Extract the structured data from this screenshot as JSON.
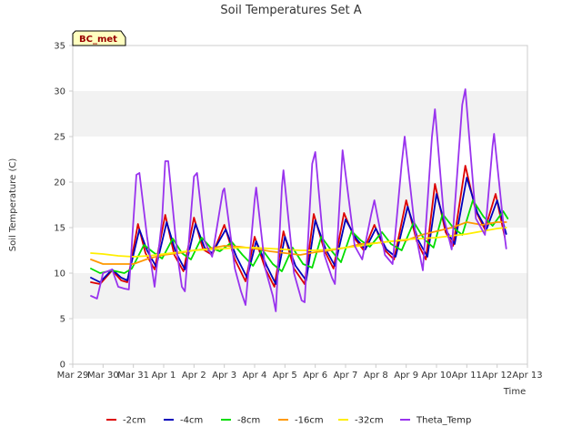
{
  "chart_data": {
    "type": "line",
    "title": "Soil Temperatures Set A",
    "xlabel": "Time",
    "ylabel": "Soil Temperature (C)",
    "station_label": "BC_met",
    "x_ticks": [
      "Mar 29",
      "Mar 30",
      "Mar 31",
      "Apr 1",
      "Apr 2",
      "Apr 3",
      "Apr 4",
      "Apr 5",
      "Apr 6",
      "Apr 7",
      "Apr 8",
      "Apr 9",
      "Apr 10",
      "Apr 11",
      "Apr 12",
      "Apr 13"
    ],
    "xlim": [
      0,
      15
    ],
    "y_ticks": [
      0,
      5,
      10,
      15,
      20,
      25,
      30,
      35
    ],
    "ylim": [
      0,
      35
    ],
    "grid": "horizontal bands",
    "legend_position": "bottom",
    "x_unit": "days since Mar 29",
    "series": [
      {
        "name": "-2cm",
        "color": "#dd0000",
        "points": [
          [
            0.6,
            9.0
          ],
          [
            0.9,
            8.8
          ],
          [
            1.3,
            10.3
          ],
          [
            1.6,
            9.2
          ],
          [
            1.8,
            9.0
          ],
          [
            2.15,
            15.4
          ],
          [
            2.4,
            12.2
          ],
          [
            2.7,
            10.4
          ],
          [
            3.05,
            16.4
          ],
          [
            3.35,
            12.0
          ],
          [
            3.65,
            10.2
          ],
          [
            4.0,
            16.1
          ],
          [
            4.3,
            12.6
          ],
          [
            4.6,
            12.0
          ],
          [
            5.0,
            15.3
          ],
          [
            5.35,
            11.5
          ],
          [
            5.7,
            9.1
          ],
          [
            6.0,
            14.0
          ],
          [
            6.35,
            10.5
          ],
          [
            6.65,
            8.5
          ],
          [
            6.95,
            14.6
          ],
          [
            7.3,
            10.5
          ],
          [
            7.65,
            8.8
          ],
          [
            7.95,
            16.5
          ],
          [
            8.3,
            12.5
          ],
          [
            8.6,
            10.5
          ],
          [
            8.95,
            16.6
          ],
          [
            9.3,
            13.8
          ],
          [
            9.6,
            12.5
          ],
          [
            9.95,
            15.3
          ],
          [
            10.3,
            12.5
          ],
          [
            10.6,
            11.5
          ],
          [
            11.0,
            18.0
          ],
          [
            11.35,
            13.5
          ],
          [
            11.65,
            11.5
          ],
          [
            11.95,
            19.8
          ],
          [
            12.3,
            14.5
          ],
          [
            12.55,
            13.0
          ],
          [
            12.95,
            21.8
          ],
          [
            13.3,
            16.8
          ],
          [
            13.6,
            14.8
          ],
          [
            13.95,
            18.7
          ],
          [
            14.25,
            14.0
          ]
        ]
      },
      {
        "name": "-4cm",
        "color": "#0000bb",
        "points": [
          [
            0.6,
            9.5
          ],
          [
            0.9,
            9.0
          ],
          [
            1.3,
            10.4
          ],
          [
            1.6,
            9.5
          ],
          [
            1.8,
            9.2
          ],
          [
            2.2,
            14.8
          ],
          [
            2.45,
            12.5
          ],
          [
            2.75,
            10.7
          ],
          [
            3.1,
            15.6
          ],
          [
            3.4,
            12.3
          ],
          [
            3.7,
            10.4
          ],
          [
            4.05,
            15.4
          ],
          [
            4.35,
            12.8
          ],
          [
            4.6,
            12.2
          ],
          [
            5.05,
            14.8
          ],
          [
            5.4,
            11.8
          ],
          [
            5.75,
            9.5
          ],
          [
            6.05,
            13.5
          ],
          [
            6.4,
            10.8
          ],
          [
            6.7,
            8.8
          ],
          [
            7.0,
            14.0
          ],
          [
            7.35,
            10.8
          ],
          [
            7.7,
            9.2
          ],
          [
            8.0,
            15.8
          ],
          [
            8.35,
            12.6
          ],
          [
            8.65,
            10.8
          ],
          [
            9.0,
            15.9
          ],
          [
            9.35,
            13.8
          ],
          [
            9.65,
            12.6
          ],
          [
            10.0,
            14.9
          ],
          [
            10.35,
            12.6
          ],
          [
            10.65,
            11.8
          ],
          [
            11.05,
            17.3
          ],
          [
            11.4,
            13.6
          ],
          [
            11.7,
            11.8
          ],
          [
            12.0,
            18.7
          ],
          [
            12.35,
            14.5
          ],
          [
            12.6,
            13.2
          ],
          [
            13.0,
            20.5
          ],
          [
            13.35,
            16.6
          ],
          [
            13.65,
            14.8
          ],
          [
            14.0,
            18.0
          ],
          [
            14.3,
            14.3
          ]
        ]
      },
      {
        "name": "-8cm",
        "color": "#00dd00",
        "points": [
          [
            0.6,
            10.5
          ],
          [
            0.9,
            10.0
          ],
          [
            1.3,
            10.3
          ],
          [
            1.7,
            10.0
          ],
          [
            1.95,
            10.5
          ],
          [
            2.35,
            13.1
          ],
          [
            2.65,
            12.3
          ],
          [
            2.95,
            11.6
          ],
          [
            3.3,
            13.8
          ],
          [
            3.6,
            12.2
          ],
          [
            3.9,
            11.5
          ],
          [
            4.25,
            13.9
          ],
          [
            4.55,
            12.8
          ],
          [
            4.85,
            12.4
          ],
          [
            5.25,
            13.4
          ],
          [
            5.6,
            12.0
          ],
          [
            5.95,
            10.8
          ],
          [
            6.25,
            12.6
          ],
          [
            6.6,
            11.0
          ],
          [
            6.9,
            10.2
          ],
          [
            7.25,
            12.8
          ],
          [
            7.6,
            11.0
          ],
          [
            7.9,
            10.6
          ],
          [
            8.2,
            14.0
          ],
          [
            8.55,
            12.4
          ],
          [
            8.85,
            11.2
          ],
          [
            9.2,
            14.6
          ],
          [
            9.5,
            13.6
          ],
          [
            9.8,
            12.9
          ],
          [
            10.2,
            14.5
          ],
          [
            10.5,
            13.2
          ],
          [
            10.85,
            12.5
          ],
          [
            11.25,
            15.6
          ],
          [
            11.6,
            13.7
          ],
          [
            11.9,
            12.8
          ],
          [
            12.2,
            16.5
          ],
          [
            12.55,
            15.0
          ],
          [
            12.85,
            14.2
          ],
          [
            13.2,
            18.0
          ],
          [
            13.55,
            16.2
          ],
          [
            13.85,
            15.2
          ],
          [
            14.2,
            16.8
          ],
          [
            14.35,
            16.0
          ]
        ]
      },
      {
        "name": "-16cm",
        "color": "#ff9900",
        "points": [
          [
            0.6,
            11.5
          ],
          [
            1.0,
            11.0
          ],
          [
            1.5,
            11.0
          ],
          [
            2.0,
            11.0
          ],
          [
            2.5,
            11.6
          ],
          [
            3.0,
            12.0
          ],
          [
            3.5,
            12.2
          ],
          [
            4.0,
            12.5
          ],
          [
            4.5,
            12.7
          ],
          [
            5.0,
            13.0
          ],
          [
            5.5,
            12.9
          ],
          [
            6.0,
            12.7
          ],
          [
            6.5,
            12.4
          ],
          [
            7.0,
            12.2
          ],
          [
            7.5,
            12.0
          ],
          [
            8.0,
            12.3
          ],
          [
            8.5,
            12.5
          ],
          [
            9.0,
            12.8
          ],
          [
            9.5,
            13.2
          ],
          [
            10.0,
            13.3
          ],
          [
            10.5,
            13.5
          ],
          [
            11.0,
            13.6
          ],
          [
            11.5,
            14.2
          ],
          [
            12.0,
            14.6
          ],
          [
            12.5,
            15.0
          ],
          [
            13.0,
            15.6
          ],
          [
            13.5,
            15.3
          ],
          [
            14.0,
            15.6
          ],
          [
            14.3,
            15.6
          ]
        ]
      },
      {
        "name": "-32cm",
        "color": "#ffee00",
        "points": [
          [
            0.6,
            12.2
          ],
          [
            1.0,
            12.1
          ],
          [
            1.5,
            11.9
          ],
          [
            2.0,
            11.8
          ],
          [
            2.5,
            11.9
          ],
          [
            3.0,
            12.1
          ],
          [
            3.5,
            12.3
          ],
          [
            4.0,
            12.5
          ],
          [
            4.5,
            12.6
          ],
          [
            5.0,
            12.7
          ],
          [
            5.5,
            12.8
          ],
          [
            6.0,
            12.8
          ],
          [
            6.5,
            12.7
          ],
          [
            7.0,
            12.6
          ],
          [
            7.5,
            12.5
          ],
          [
            8.0,
            12.5
          ],
          [
            8.5,
            12.6
          ],
          [
            9.0,
            12.8
          ],
          [
            9.5,
            13.0
          ],
          [
            10.0,
            13.3
          ],
          [
            10.5,
            13.5
          ],
          [
            11.0,
            13.7
          ],
          [
            11.5,
            13.8
          ],
          [
            12.0,
            13.9
          ],
          [
            12.5,
            14.1
          ],
          [
            13.0,
            14.3
          ],
          [
            13.5,
            14.6
          ],
          [
            14.0,
            14.9
          ],
          [
            14.3,
            15.0
          ]
        ]
      },
      {
        "name": "Theta_Temp",
        "color": "#9933ee",
        "points": [
          [
            0.6,
            7.5
          ],
          [
            0.8,
            7.2
          ],
          [
            1.0,
            10.0
          ],
          [
            1.3,
            10.4
          ],
          [
            1.5,
            8.5
          ],
          [
            1.7,
            8.3
          ],
          [
            1.85,
            8.2
          ],
          [
            2.1,
            20.8
          ],
          [
            2.2,
            21.0
          ],
          [
            2.45,
            14.0
          ],
          [
            2.7,
            8.5
          ],
          [
            2.95,
            16.0
          ],
          [
            3.05,
            22.3
          ],
          [
            3.15,
            22.3
          ],
          [
            3.45,
            12.0
          ],
          [
            3.6,
            8.5
          ],
          [
            3.7,
            8.0
          ],
          [
            4.0,
            20.6
          ],
          [
            4.1,
            21.0
          ],
          [
            4.35,
            13.5
          ],
          [
            4.6,
            11.8
          ],
          [
            4.95,
            19.0
          ],
          [
            5.0,
            19.3
          ],
          [
            5.35,
            10.5
          ],
          [
            5.55,
            8.0
          ],
          [
            5.7,
            6.5
          ],
          [
            6.0,
            18.0
          ],
          [
            6.05,
            19.4
          ],
          [
            6.35,
            10.5
          ],
          [
            6.6,
            7.5
          ],
          [
            6.7,
            5.8
          ],
          [
            6.9,
            19.5
          ],
          [
            6.95,
            21.3
          ],
          [
            7.3,
            10.0
          ],
          [
            7.55,
            7.0
          ],
          [
            7.65,
            6.8
          ],
          [
            7.9,
            22.0
          ],
          [
            8.0,
            23.3
          ],
          [
            8.3,
            12.0
          ],
          [
            8.55,
            9.5
          ],
          [
            8.65,
            8.8
          ],
          [
            8.85,
            20.5
          ],
          [
            8.9,
            23.5
          ],
          [
            9.3,
            13.0
          ],
          [
            9.55,
            11.5
          ],
          [
            9.85,
            16.5
          ],
          [
            9.95,
            18.0
          ],
          [
            10.3,
            12.0
          ],
          [
            10.55,
            11.0
          ],
          [
            10.85,
            22.0
          ],
          [
            10.95,
            25.0
          ],
          [
            11.3,
            14.5
          ],
          [
            11.55,
            10.3
          ],
          [
            11.85,
            25.0
          ],
          [
            11.95,
            28.0
          ],
          [
            12.25,
            16.0
          ],
          [
            12.5,
            12.6
          ],
          [
            12.85,
            28.5
          ],
          [
            12.95,
            30.2
          ],
          [
            13.3,
            16.0
          ],
          [
            13.6,
            14.2
          ],
          [
            13.85,
            24.0
          ],
          [
            13.9,
            25.3
          ],
          [
            14.25,
            14.0
          ],
          [
            14.3,
            12.7
          ]
        ]
      }
    ]
  }
}
